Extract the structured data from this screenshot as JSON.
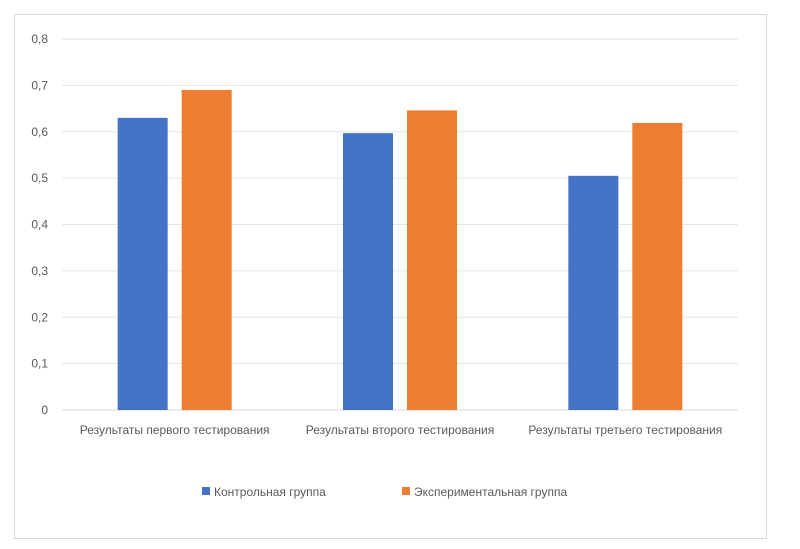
{
  "chart_data": {
    "type": "bar",
    "categories": [
      "Результаты первого тестирования",
      "Результаты второго тестирования",
      "Результаты третьего тестирования"
    ],
    "series": [
      {
        "name": "Контрольная группа",
        "values": [
          0.63,
          0.597,
          0.505
        ],
        "color": "#4472c4"
      },
      {
        "name": "Экспериментальная группа",
        "values": [
          0.69,
          0.646,
          0.619
        ],
        "color": "#ed7d31"
      }
    ],
    "ylim": [
      0,
      0.8
    ],
    "yticks": [
      "0",
      "0,1",
      "0,2",
      "0,3",
      "0,4",
      "0,5",
      "0,6",
      "0,7",
      "0,8"
    ],
    "grid": true,
    "legend_position": "bottom"
  }
}
